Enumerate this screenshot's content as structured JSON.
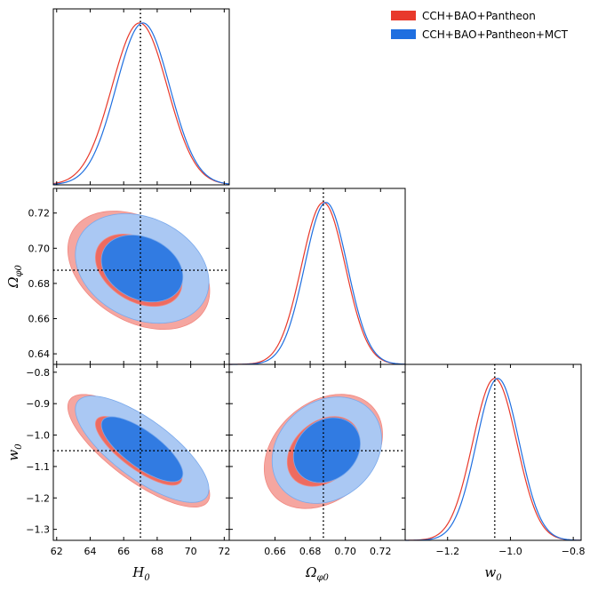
{
  "chart_data": {
    "type": "triangle-corner",
    "parameters": [
      {
        "name": "H0",
        "symbol": "H",
        "subscript": "0",
        "label": "H0",
        "range": [
          61.8,
          72.3
        ],
        "ticks": [
          62,
          64,
          66,
          68,
          70,
          72
        ],
        "tick_labels": [
          "62",
          "64",
          "66",
          "68",
          "70",
          "72"
        ],
        "reference": 67.0
      },
      {
        "name": "Omega_phi0",
        "symbol": "Ω",
        "subscript": "φ0",
        "label": "Ωφ0",
        "range": [
          0.634,
          0.734
        ],
        "ticks": [
          0.66,
          0.68,
          0.7,
          0.72
        ],
        "tick_labels": [
          "0.66",
          "0.68",
          "0.70",
          "0.72"
        ],
        "ticks_y": [
          0.64,
          0.66,
          0.68,
          0.7,
          0.72
        ],
        "tick_labels_y": [
          "0.64",
          "0.66",
          "0.68",
          "0.70",
          "0.72"
        ],
        "reference": 0.6875
      },
      {
        "name": "w0",
        "symbol": "w",
        "subscript": "0",
        "label": "w0",
        "range": [
          -1.335,
          -0.775
        ],
        "ticks": [
          -1.2,
          -1.0,
          -0.8
        ],
        "tick_labels": [
          "−1.2",
          "−1.0",
          "−0.8"
        ],
        "ticks_y": [
          -1.3,
          -1.2,
          -1.1,
          -1.0,
          -0.9,
          -0.8
        ],
        "tick_labels_y": [
          "−1.3",
          "−1.2",
          "−1.1",
          "−1.0",
          "−0.9",
          "−0.8"
        ],
        "reference": -1.05
      }
    ],
    "series": [
      {
        "name": "CCH+BAO+Pantheon",
        "color": "#e8392b",
        "marginals": [
          {
            "mean": 66.95,
            "sigma": 1.65
          },
          {
            "mean": 0.6875,
            "sigma": 0.0125
          },
          {
            "mean": -1.05,
            "sigma": 0.07
          }
        ],
        "contours": [
          {
            "pair": [
              0,
              1
            ],
            "center": [
              66.9,
              0.6875
            ],
            "sigma1": [
              1.7,
              0.0135
            ],
            "rho": -0.35
          },
          {
            "pair": [
              0,
              2
            ],
            "center": [
              66.9,
              -1.05
            ],
            "sigma1": [
              1.7,
              0.072
            ],
            "rho": -0.78
          },
          {
            "pair": [
              1,
              2
            ],
            "center": [
              0.6875,
              -1.052
            ],
            "sigma1": [
              0.0135,
              0.073
            ],
            "rho": 0.3
          }
        ]
      },
      {
        "name": "CCH+BAO+Pantheon+MCT",
        "color": "#1f6fe0",
        "marginals": [
          {
            "mean": 67.15,
            "sigma": 1.6
          },
          {
            "mean": 0.689,
            "sigma": 0.0122
          },
          {
            "mean": -1.04,
            "sigma": 0.068
          }
        ],
        "contours": [
          {
            "pair": [
              0,
              1
            ],
            "center": [
              67.1,
              0.6885
            ],
            "sigma1": [
              1.6,
              0.0125
            ],
            "rho": -0.25
          },
          {
            "pair": [
              0,
              2
            ],
            "center": [
              67.1,
              -1.045
            ],
            "sigma1": [
              1.6,
              0.068
            ],
            "rho": -0.75
          },
          {
            "pair": [
              1,
              2
            ],
            "center": [
              0.6895,
              -1.048
            ],
            "sigma1": [
              0.0125,
              0.068
            ],
            "rho": 0.2
          }
        ]
      }
    ],
    "legend": {
      "position": "top-right",
      "entries": [
        "CCH+BAO+Pantheon",
        "CCH+BAO+Pantheon+MCT"
      ]
    },
    "reference_lines": {
      "style": "dotted",
      "color": "#000000"
    },
    "grid": false
  }
}
